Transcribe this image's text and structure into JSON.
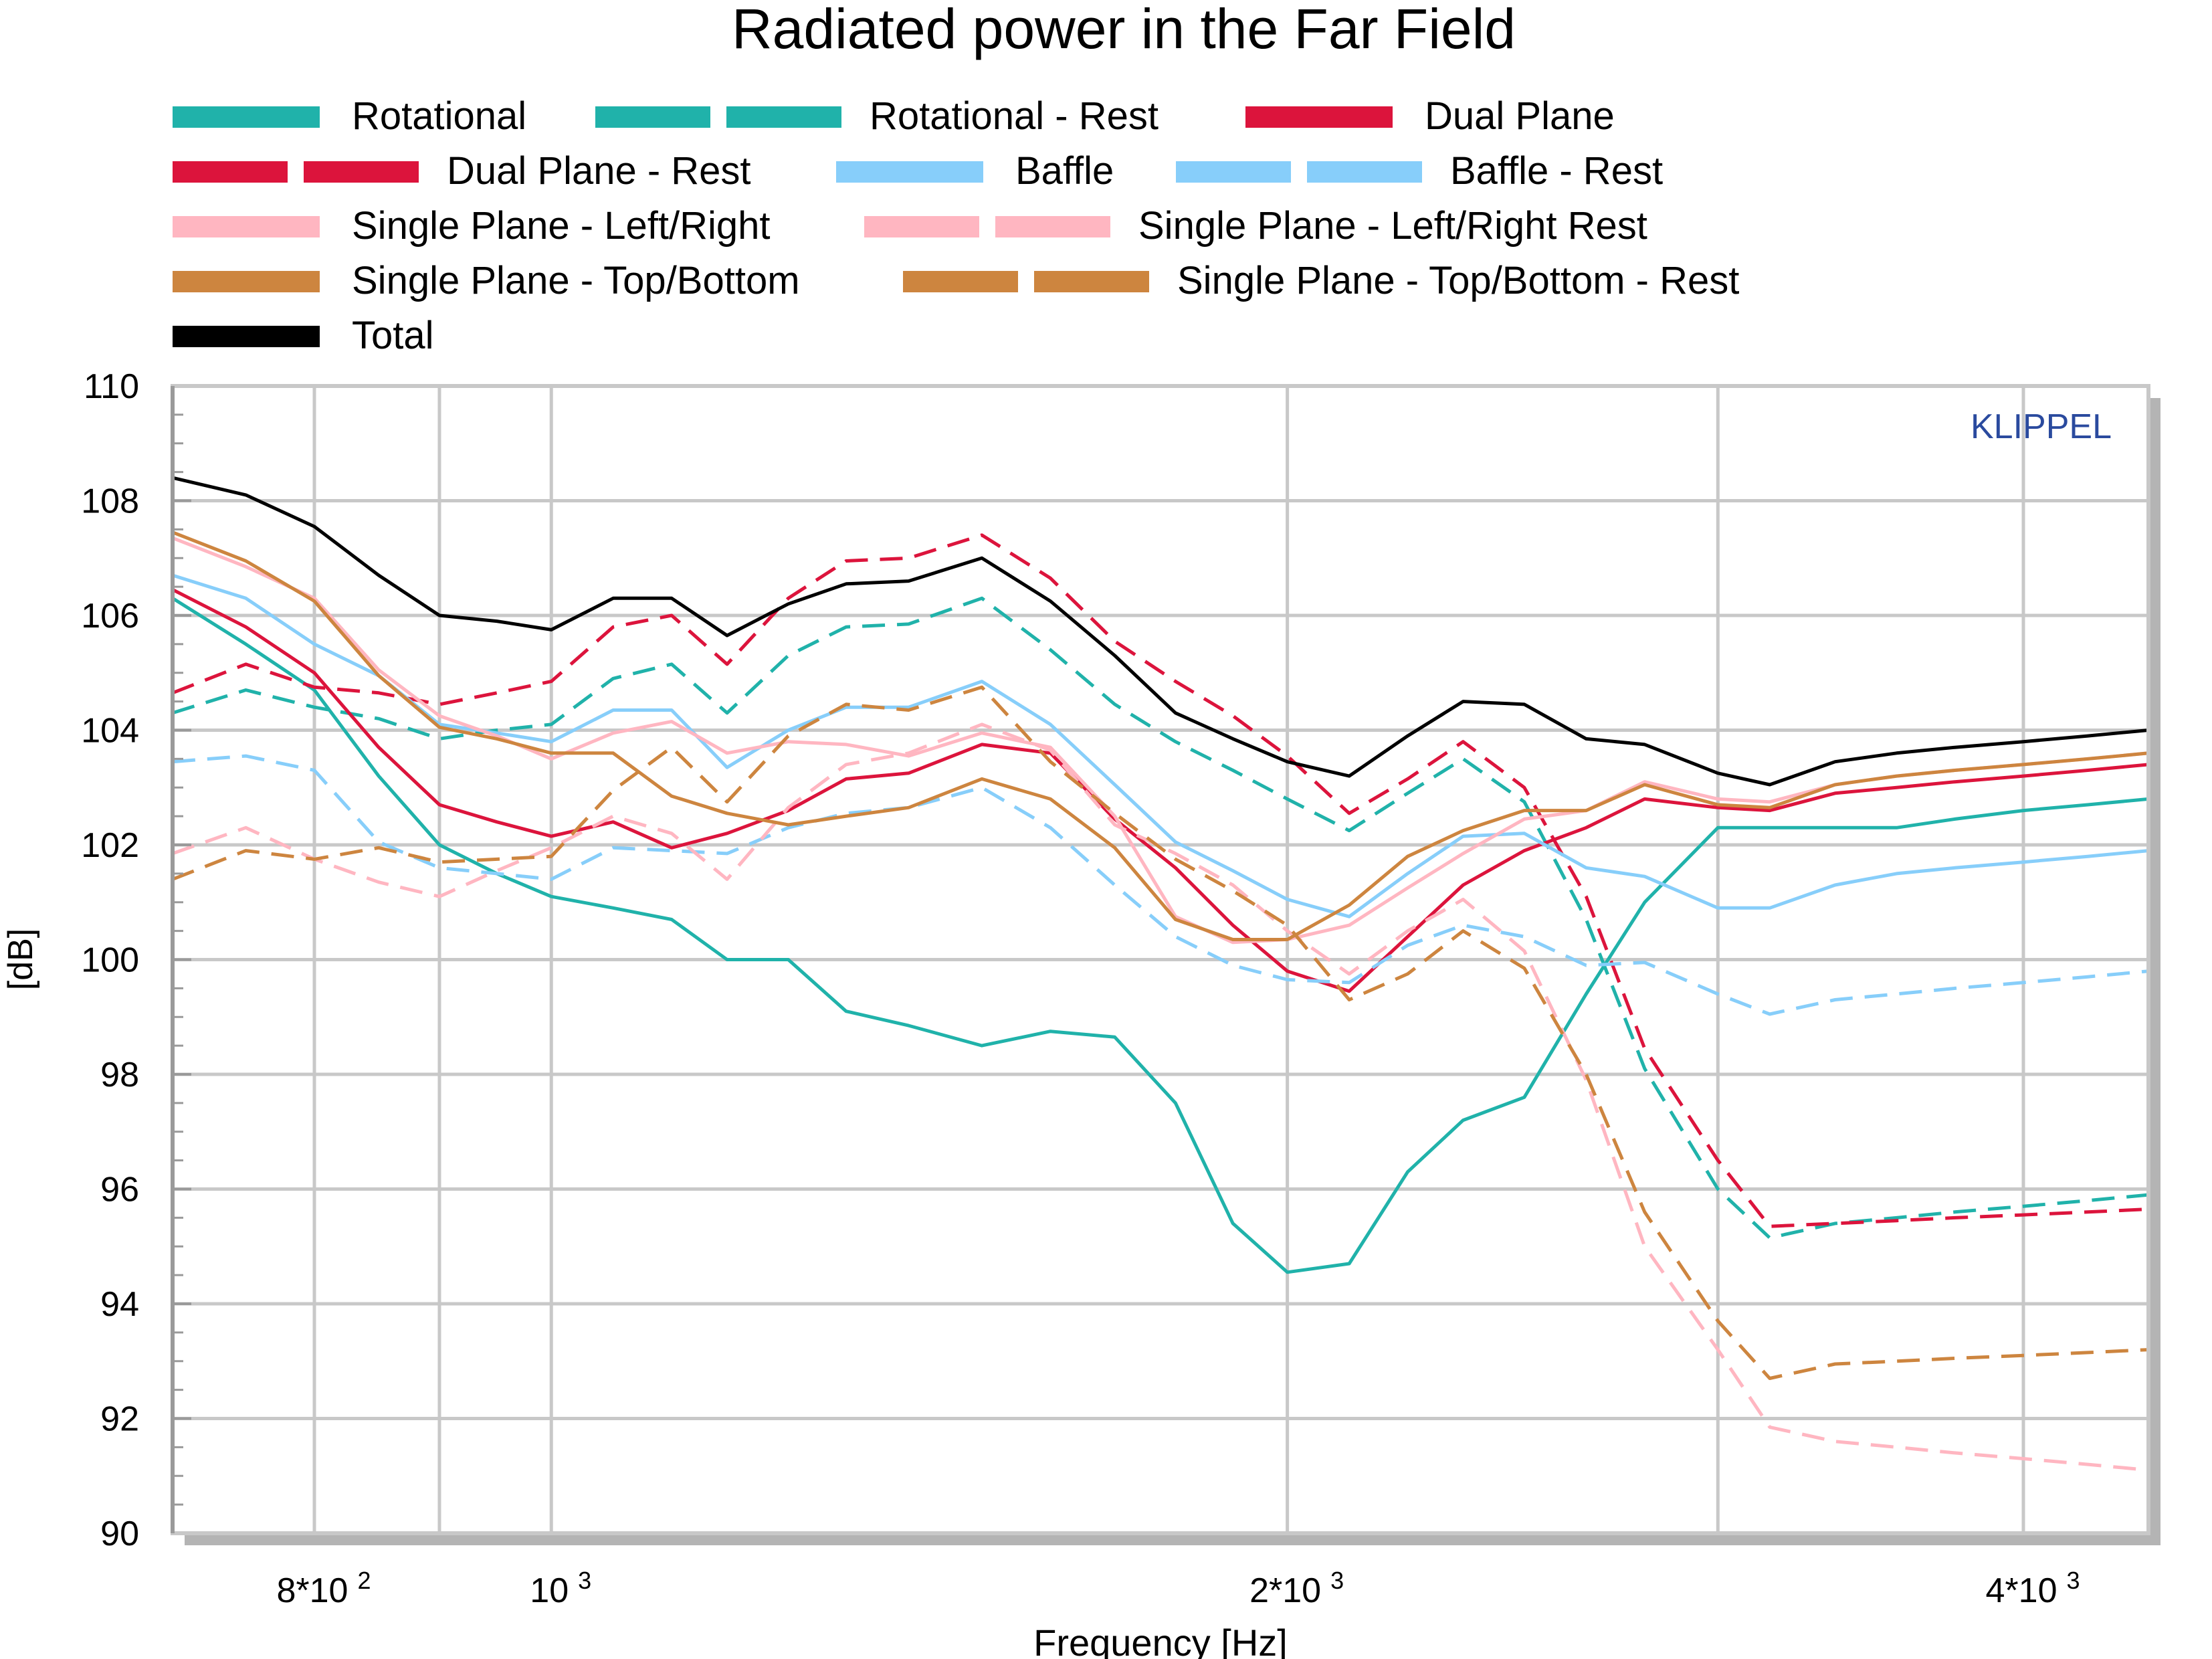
{
  "chart_data": {
    "type": "line",
    "title": "Radiated power in the Far Field",
    "xlabel": "Frequency [Hz]",
    "ylabel": "[dB]",
    "watermark": "KLIPPEL",
    "x_scale": "log",
    "xlim": [
      700,
      4500
    ],
    "ylim": [
      90,
      110
    ],
    "y_ticks": [
      90,
      92,
      94,
      96,
      98,
      100,
      102,
      104,
      106,
      108,
      110
    ],
    "x_ticks": [
      {
        "value": 800,
        "mantissa": "8*10",
        "exponent": "2"
      },
      {
        "value": 1000,
        "mantissa": "10",
        "exponent": "3"
      },
      {
        "value": 2000,
        "mantissa": "2*10",
        "exponent": "3"
      },
      {
        "value": 4000,
        "mantissa": "4*10",
        "exponent": "3"
      }
    ],
    "x_gridlines": [
      800,
      900,
      1000,
      2000,
      3000,
      4000
    ],
    "grid": true,
    "legend_position": "top",
    "x": [
      700,
      750,
      800,
      850,
      900,
      950,
      1000,
      1060,
      1120,
      1180,
      1250,
      1320,
      1400,
      1500,
      1600,
      1700,
      1800,
      1900,
      2000,
      2120,
      2240,
      2360,
      2500,
      2650,
      2800,
      3000,
      3150,
      3350,
      3550,
      3750,
      4000,
      4250,
      4500
    ],
    "series": [
      {
        "name": "Rotational",
        "color": "#20b2aa",
        "dash": "solid",
        "values": [
          106.3,
          105.5,
          104.7,
          103.2,
          102.0,
          101.5,
          101.1,
          100.9,
          100.7,
          100.0,
          100.0,
          99.1,
          98.85,
          98.5,
          98.75,
          98.65,
          97.5,
          95.4,
          94.55,
          94.7,
          96.3,
          97.2,
          97.6,
          99.4,
          101.0,
          102.3,
          102.3,
          102.3,
          102.3,
          102.45,
          102.6,
          102.7,
          102.8
        ]
      },
      {
        "name": "Rotational - Rest",
        "color": "#20b2aa",
        "dash": "dashed",
        "values": [
          104.3,
          104.7,
          104.4,
          104.2,
          103.85,
          104.0,
          104.1,
          104.9,
          105.15,
          104.3,
          105.3,
          105.8,
          105.85,
          106.3,
          105.4,
          104.45,
          103.8,
          103.3,
          102.8,
          102.25,
          102.9,
          103.5,
          102.75,
          100.7,
          98.1,
          96.0,
          95.15,
          95.4,
          95.5,
          95.6,
          95.7,
          95.8,
          95.9
        ]
      },
      {
        "name": "Dual Plane",
        "color": "#dc143c",
        "dash": "solid",
        "values": [
          106.45,
          105.8,
          105.0,
          103.7,
          102.7,
          102.4,
          102.15,
          102.4,
          101.95,
          102.2,
          102.6,
          103.15,
          103.25,
          103.75,
          103.6,
          102.45,
          101.6,
          100.6,
          99.8,
          99.45,
          100.4,
          101.3,
          101.9,
          102.3,
          102.8,
          102.65,
          102.6,
          102.9,
          103.0,
          103.1,
          103.2,
          103.3,
          103.4
        ]
      },
      {
        "name": "Dual Plane - Rest",
        "color": "#dc143c",
        "dash": "dashed",
        "values": [
          104.65,
          105.15,
          104.75,
          104.65,
          104.45,
          104.65,
          104.85,
          105.8,
          106.0,
          105.15,
          106.3,
          106.95,
          107.0,
          107.4,
          106.65,
          105.55,
          104.85,
          104.25,
          103.55,
          102.55,
          103.15,
          103.8,
          103.0,
          101.1,
          98.45,
          96.5,
          95.35,
          95.4,
          95.45,
          95.5,
          95.55,
          95.6,
          95.65
        ]
      },
      {
        "name": "Baffle",
        "color": "#87cefa",
        "dash": "solid",
        "values": [
          106.7,
          106.3,
          105.5,
          104.95,
          104.1,
          103.95,
          103.8,
          104.35,
          104.35,
          103.35,
          104.0,
          104.4,
          104.4,
          104.85,
          104.1,
          103.05,
          102.05,
          101.55,
          101.05,
          100.75,
          101.5,
          102.15,
          102.2,
          101.6,
          101.45,
          100.9,
          100.9,
          101.3,
          101.5,
          101.6,
          101.7,
          101.8,
          101.9
        ]
      },
      {
        "name": "Baffle - Rest",
        "color": "#87cefa",
        "dash": "dashed",
        "values": [
          103.45,
          103.55,
          103.3,
          102.05,
          101.6,
          101.5,
          101.4,
          101.95,
          101.9,
          101.85,
          102.3,
          102.55,
          102.65,
          103.0,
          102.3,
          101.3,
          100.4,
          99.9,
          99.65,
          99.6,
          100.25,
          100.6,
          100.4,
          99.9,
          99.95,
          99.4,
          99.05,
          99.3,
          99.4,
          99.5,
          99.6,
          99.7,
          99.8
        ]
      },
      {
        "name": "Single Plane - Left/Right",
        "color": "#ffb6c1",
        "dash": "solid",
        "values": [
          107.35,
          106.85,
          106.3,
          105.05,
          104.25,
          103.9,
          103.5,
          103.95,
          104.15,
          103.6,
          103.8,
          103.75,
          103.55,
          103.95,
          103.7,
          102.5,
          100.75,
          100.3,
          100.35,
          100.6,
          101.25,
          101.85,
          102.45,
          102.6,
          103.1,
          102.8,
          102.75,
          103.05,
          103.2,
          103.3,
          103.4,
          103.5,
          103.6
        ]
      },
      {
        "name": "Single Plane - Left/Right Rest",
        "color": "#ffb6c1",
        "dash": "dashed",
        "values": [
          101.85,
          102.3,
          101.75,
          101.35,
          101.1,
          101.55,
          101.95,
          102.5,
          102.2,
          101.4,
          102.65,
          103.4,
          103.6,
          104.1,
          103.65,
          102.35,
          101.85,
          101.3,
          100.5,
          99.75,
          100.5,
          101.05,
          100.15,
          97.9,
          95.0,
          93.2,
          91.85,
          91.6,
          91.5,
          91.4,
          91.3,
          91.2,
          91.1
        ]
      },
      {
        "name": "Single Plane - Top/Bottom",
        "color": "#cd853f",
        "dash": "solid",
        "values": [
          107.45,
          106.95,
          106.25,
          104.95,
          104.05,
          103.85,
          103.6,
          103.6,
          102.85,
          102.55,
          102.35,
          102.5,
          102.65,
          103.15,
          102.8,
          101.95,
          100.7,
          100.35,
          100.35,
          100.95,
          101.8,
          102.25,
          102.6,
          102.6,
          103.05,
          102.7,
          102.65,
          103.05,
          103.2,
          103.3,
          103.4,
          103.5,
          103.6
        ]
      },
      {
        "name": "Single Plane - Top/Bottom - Rest",
        "color": "#cd853f",
        "dash": "dashed",
        "values": [
          101.4,
          101.9,
          101.75,
          101.95,
          101.7,
          101.75,
          101.8,
          102.95,
          103.7,
          102.75,
          103.9,
          104.45,
          104.35,
          104.75,
          103.45,
          102.55,
          101.75,
          101.2,
          100.6,
          99.3,
          99.75,
          100.5,
          99.85,
          98.0,
          95.6,
          93.7,
          92.7,
          92.95,
          93.0,
          93.05,
          93.1,
          93.15,
          93.2
        ]
      },
      {
        "name": "Total",
        "color": "#000000",
        "dash": "solid",
        "values": [
          108.4,
          108.1,
          107.55,
          106.7,
          106.0,
          105.9,
          105.75,
          106.3,
          106.3,
          105.65,
          106.2,
          106.55,
          106.6,
          107.0,
          106.25,
          105.3,
          104.3,
          103.85,
          103.45,
          103.2,
          103.9,
          104.5,
          104.45,
          103.85,
          103.75,
          103.25,
          103.05,
          103.45,
          103.6,
          103.7,
          103.8,
          103.9,
          104.0
        ]
      }
    ]
  }
}
